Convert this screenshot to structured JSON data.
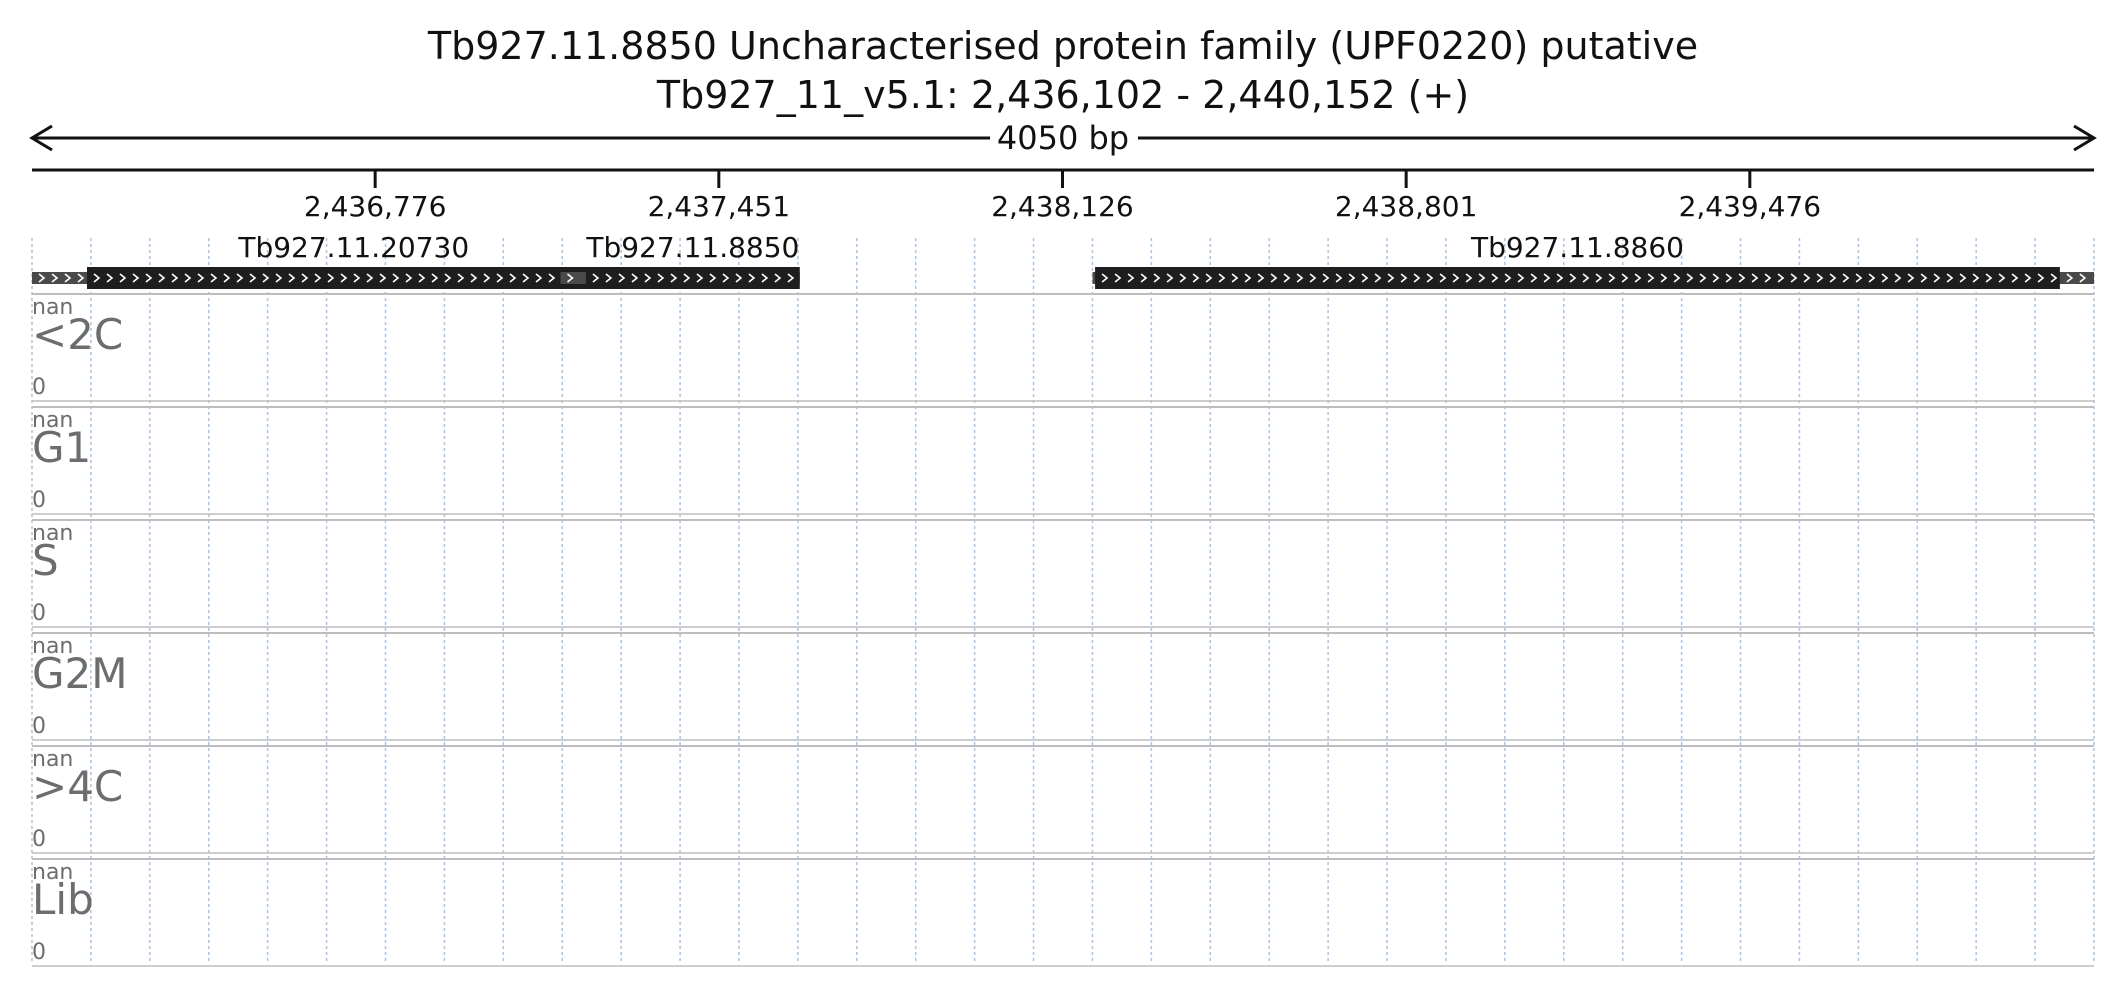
{
  "header": {
    "title_line1": "Tb927.11.8850  Uncharacterised protein family (UPF0220)  putative",
    "title_line2": "Tb927_11_v5.1: 2,436,102 - 2,440,152 (+)",
    "span_label": "4050 bp"
  },
  "region": {
    "start": 2436102,
    "end": 2440152
  },
  "ruler": {
    "ticks": [
      {
        "pos": 2436776,
        "label": "2,436,776"
      },
      {
        "pos": 2437451,
        "label": "2,437,451"
      },
      {
        "pos": 2438126,
        "label": "2,438,126"
      },
      {
        "pos": 2438801,
        "label": "2,438,801"
      },
      {
        "pos": 2439476,
        "label": "2,439,476"
      }
    ]
  },
  "genes": [
    {
      "name": "Tb927.11.20730",
      "utr_start": 2436102,
      "cds_start": 2436210,
      "cds_end": 2437258,
      "utr_end": 2437388
    },
    {
      "name": "Tb927.11.8850",
      "utr_start": 2437140,
      "cds_start": 2437190,
      "cds_end": 2437610,
      "utr_end": 2437610
    },
    {
      "name": "Tb927.11.8860",
      "utr_start": 2438185,
      "cds_start": 2438190,
      "cds_end": 2440085,
      "utr_end": 2440152
    }
  ],
  "tracks": [
    {
      "name": "<2C",
      "max_label": "nan",
      "min_label": "0"
    },
    {
      "name": "G1",
      "max_label": "nan",
      "min_label": "0"
    },
    {
      "name": "S",
      "max_label": "nan",
      "min_label": "0"
    },
    {
      "name": "G2M",
      "max_label": "nan",
      "min_label": "0"
    },
    {
      "name": ">4C",
      "max_label": "nan",
      "min_label": "0"
    },
    {
      "name": "Lib",
      "max_label": "nan",
      "min_label": "0"
    }
  ],
  "colors": {
    "cds": "#1e1e1e",
    "utr": "#4a4a4a",
    "grid": "#a9c4e4",
    "track_border": "#bdbdbd",
    "axis": "#111111"
  }
}
